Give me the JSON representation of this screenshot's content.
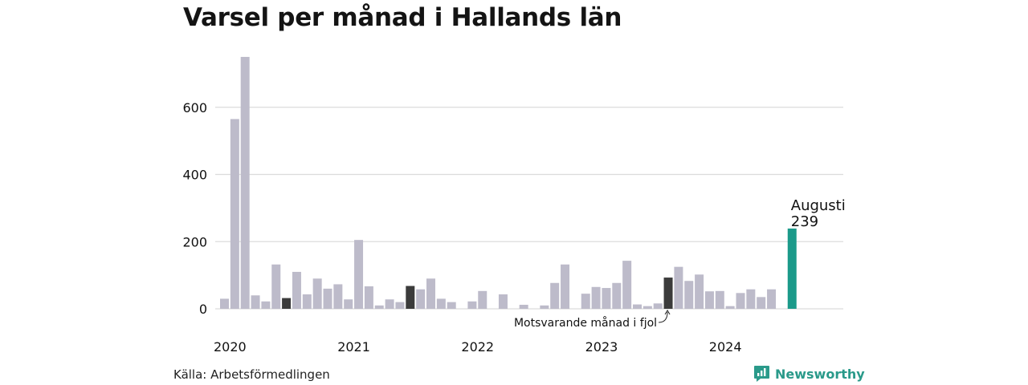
{
  "title": "Varsel per månad i Hallands län",
  "source": "Källa: Arbetsförmedlingen",
  "brand": "Newsworthy",
  "colors": {
    "bar": "#bdbbca",
    "highlight_prev": "#3b3b3b",
    "highlight_current": "#1b9a8a",
    "grid": "#dcdcdc",
    "brand": "#2a9a8a"
  },
  "chart_data": {
    "type": "bar",
    "title": "Varsel per månad i Hallands län",
    "xlabel": "",
    "ylabel": "",
    "ylim": [
      0,
      760
    ],
    "yticks": [
      0,
      200,
      400,
      600
    ],
    "xtick_labels": [
      "2020",
      "2021",
      "2022",
      "2023",
      "2024"
    ],
    "grid": true,
    "categories": [
      "2020-01",
      "2020-02",
      "2020-03",
      "2020-04",
      "2020-05",
      "2020-06",
      "2020-07",
      "2020-08",
      "2020-09",
      "2020-10",
      "2020-11",
      "2020-12",
      "2021-01",
      "2021-02",
      "2021-03",
      "2021-04",
      "2021-05",
      "2021-06",
      "2021-07",
      "2021-08",
      "2021-09",
      "2021-10",
      "2021-11",
      "2021-12",
      "2022-01",
      "2022-02",
      "2022-03",
      "2022-04",
      "2022-05",
      "2022-06",
      "2022-07",
      "2022-08",
      "2022-09",
      "2022-10",
      "2022-11",
      "2022-12",
      "2023-01",
      "2023-02",
      "2023-03",
      "2023-04",
      "2023-05",
      "2023-06",
      "2023-07",
      "2023-08",
      "2023-09",
      "2023-10",
      "2023-11",
      "2023-12",
      "2024-01",
      "2024-02",
      "2024-03",
      "2024-04",
      "2024-05",
      "2024-06",
      "2024-07",
      "2024-08"
    ],
    "values": [
      30,
      565,
      750,
      40,
      22,
      132,
      32,
      110,
      43,
      90,
      60,
      73,
      28,
      205,
      67,
      10,
      28,
      20,
      68,
      58,
      90,
      30,
      20,
      0,
      22,
      53,
      0,
      43,
      0,
      12,
      0,
      10,
      77,
      132,
      0,
      45,
      65,
      62,
      77,
      143,
      13,
      8,
      16,
      93,
      125,
      83,
      102,
      52,
      53,
      8,
      47,
      58,
      35,
      58,
      0,
      239
    ],
    "highlight_previous_index": 43,
    "highlight_current_index": 55,
    "highlight_extra_dark_indices": [
      6,
      18
    ],
    "annotations": {
      "current_label": "Augusti",
      "current_value": "239",
      "previous_label": "Motsvarande månad i fjol"
    }
  }
}
